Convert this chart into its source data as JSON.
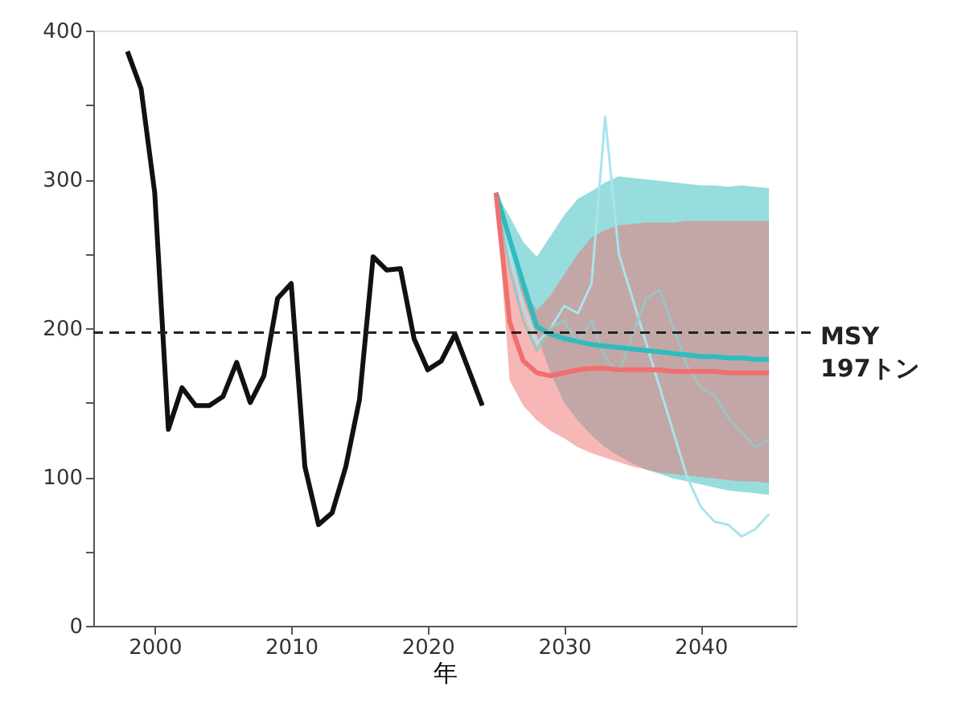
{
  "chart_data": {
    "type": "line",
    "xlabel": "年",
    "xlim": [
      1995.5,
      2047
    ],
    "xticks": [
      2000,
      2010,
      2020,
      2030,
      2040
    ],
    "ylim": [
      0,
      400
    ],
    "yticks": [
      0,
      {
        "value": 50,
        "label": null
      },
      100,
      {
        "value": 150,
        "label": null
      },
      200,
      {
        "value": 250,
        "label": null
      },
      300,
      {
        "value": 350,
        "label": null
      },
      400
    ],
    "series": [
      {
        "color": "#a8e4ec",
        "x": [
          2025,
          2026,
          2027,
          2028,
          2029,
          2030,
          2031,
          2032,
          2033,
          2034,
          2035,
          2036,
          2037,
          2038,
          2039,
          2040,
          2041,
          2042,
          2043,
          2044,
          2045
        ],
        "values": [
          291,
          250,
          215,
          190,
          200,
          215,
          210,
          230,
          342,
          250,
          220,
          190,
          160,
          130,
          100,
          80,
          70,
          68,
          60,
          65,
          75
        ]
      },
      {
        "color": "#9cc4c4",
        "x": [
          2025,
          2026,
          2027,
          2028,
          2029,
          2030,
          2031,
          2032,
          2033,
          2034,
          2035,
          2036,
          2037,
          2038,
          2039,
          2040,
          2041,
          2042,
          2043,
          2044,
          2045
        ],
        "values": [
          291,
          240,
          205,
          185,
          200,
          205,
          190,
          205,
          180,
          170,
          195,
          220,
          226,
          200,
          175,
          160,
          155,
          140,
          130,
          120,
          125
        ]
      },
      {
        "color": "#30bcbc",
        "x": [
          2025,
          2026,
          2027,
          2028,
          2029,
          2030,
          2031,
          2032,
          2033,
          2034,
          2035,
          2036,
          2037,
          2038,
          2039,
          2040,
          2041,
          2042,
          2043,
          2044,
          2045
        ],
        "values": [
          291,
          260,
          230,
          201,
          196,
          193,
          191,
          189,
          188,
          187,
          186,
          185,
          184,
          183,
          182,
          181,
          181,
          180,
          180,
          179,
          179
        ],
        "lower": [
          291,
          250,
          220,
          195,
          170,
          150,
          138,
          128,
          120,
          114,
          109,
          105,
          102,
          99,
          97,
          95,
          93,
          91,
          90,
          89,
          88
        ],
        "upper": [
          291,
          275,
          258,
          248,
          262,
          276,
          287,
          292,
          298,
          302,
          301,
          300,
          299,
          298,
          297,
          296,
          296,
          295,
          296,
          295,
          294
        ]
      },
      {
        "color": "#f07070",
        "x": [
          2025,
          2026,
          2027,
          2028,
          2029,
          2030,
          2031,
          2032,
          2033,
          2034,
          2035,
          2036,
          2037,
          2038,
          2039,
          2040,
          2041,
          2042,
          2043,
          2044,
          2045
        ],
        "values": [
          291,
          204,
          178,
          170,
          168,
          170,
          172,
          173,
          173,
          172,
          172,
          172,
          172,
          171,
          171,
          171,
          171,
          170,
          170,
          170,
          170
        ],
        "lower": [
          291,
          165,
          148,
          138,
          131,
          126,
          120,
          116,
          113,
          110,
          107,
          105,
          103,
          102,
          101,
          100,
          99,
          98,
          97,
          97,
          96
        ],
        "upper": [
          291,
          250,
          225,
          212,
          222,
          236,
          250,
          261,
          266,
          269,
          270,
          271,
          271,
          271,
          272,
          272,
          272,
          272,
          272,
          272,
          272
        ]
      },
      {
        "color": "#111111",
        "x": [
          1998,
          1999,
          2000,
          2001,
          2002,
          2003,
          2004,
          2005,
          2006,
          2007,
          2008,
          2009,
          2010,
          2011,
          2012,
          2013,
          2014,
          2015,
          2016,
          2017,
          2018,
          2019,
          2020,
          2021,
          2022,
          2023,
          2024
        ],
        "values": [
          386,
          361,
          291,
          132,
          160,
          148,
          148,
          154,
          177,
          150,
          168,
          220,
          230,
          107,
          68,
          76,
          107,
          152,
          248,
          239,
          240,
          193,
          172,
          178,
          196,
          172,
          148
        ]
      }
    ],
    "ref_lines": [
      {
        "axis": "y",
        "value": 197,
        "label": "MSY\n197トン",
        "color": "#222222",
        "line_style": "dashed"
      }
    ]
  }
}
